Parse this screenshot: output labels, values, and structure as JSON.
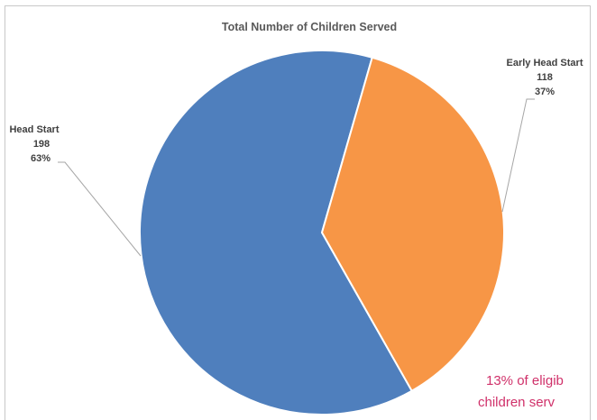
{
  "chart_data": {
    "type": "pie",
    "title": "Total Number of Children Served",
    "categories": [
      "Head Start",
      "Early Head Start"
    ],
    "values": [
      198,
      118
    ],
    "percent_labels": [
      "63%",
      "37%"
    ],
    "colors": [
      "#4f7fbd",
      "#f79646"
    ],
    "annotation": [
      "13% of eligib",
      "children serv"
    ]
  }
}
